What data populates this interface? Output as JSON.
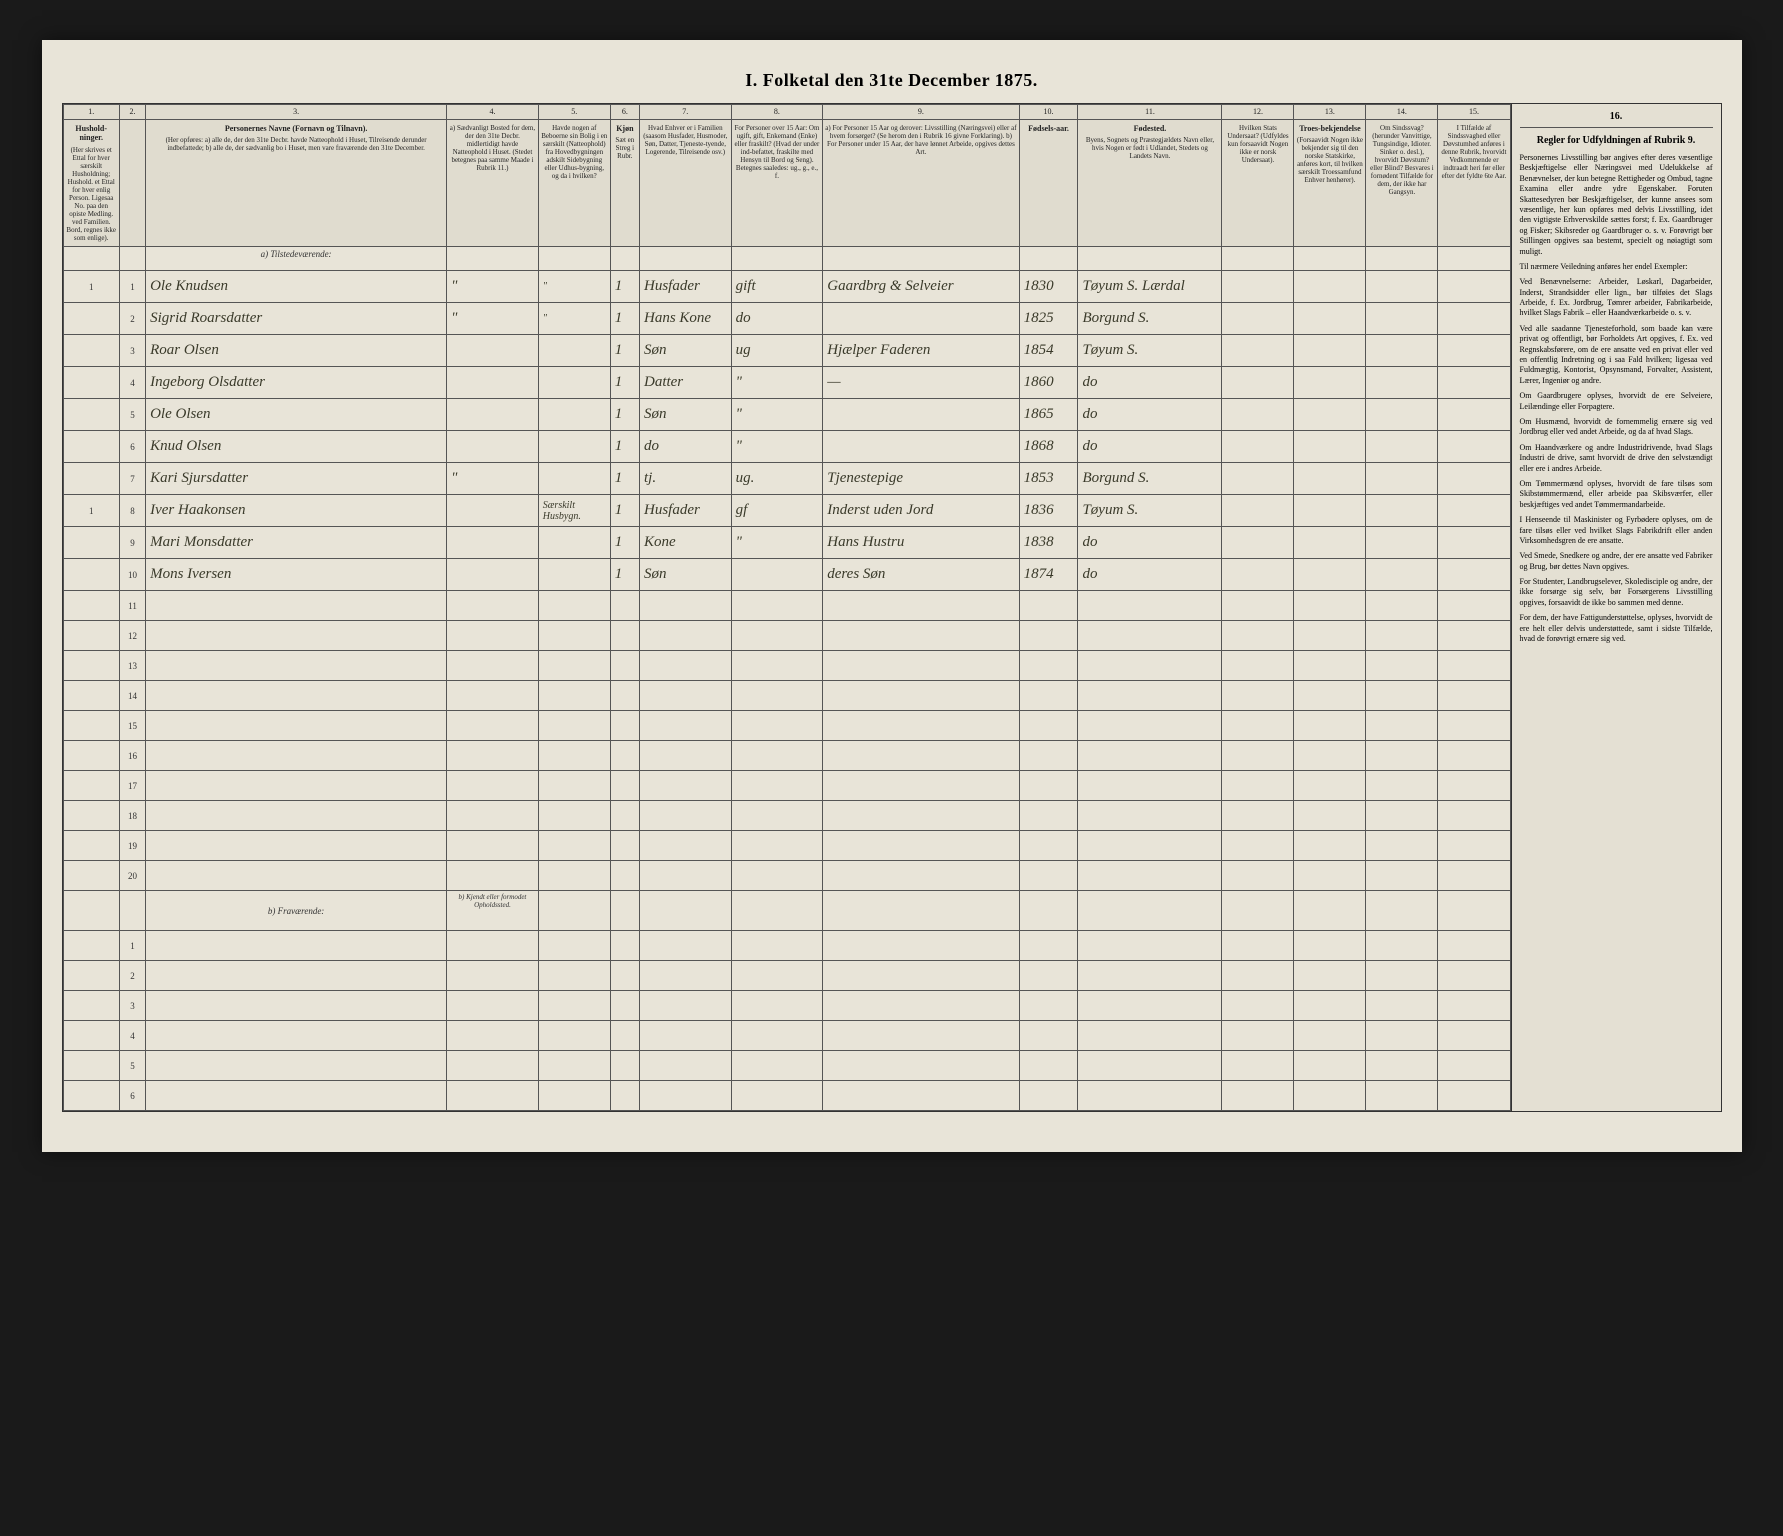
{
  "title": "I. Folketal den 31te December 1875.",
  "columns": [
    {
      "num": "1.",
      "title": "Hushold-ninger.",
      "desc": "(Her skrives et Ettal for hver særskilt Husholdning; Hushold. et Ettal for hver enlig Person. Ligesaa No. paa den opiste Medling. ved Familien. Bord, regnes ikke som enlige)."
    },
    {
      "num": "2.",
      "title": "",
      "desc": ""
    },
    {
      "num": "3.",
      "title": "Personernes Navne (Fornavn og Tilnavn).",
      "desc": "(Her opføres: a) alle de, der den 31te Decbr. havde Natteophold i Huset, Tilreisende derunder indbefattede; b) alle de, der sædvanlig bo i Huset, men vare fraværende den 31te December."
    },
    {
      "num": "4.",
      "title": "",
      "desc": "a) Sædvanligt Bosted for dem, der den 31te Decbr. midlertidigt havde Natteophold i Huset. (Stedet betegnes paa samme Maade i Rubrik 11.)"
    },
    {
      "num": "5.",
      "title": "",
      "desc": "Havde nogen af Beboerne sin Bolig i en særskilt (Natteophold) fra Hovedbygningen adskilt Sidebygning eller Udhus-bygning, og da i hvilken?"
    },
    {
      "num": "6.",
      "title": "Kjøn",
      "desc": "Sæt en Streg i Rubr."
    },
    {
      "num": "7.",
      "title": "",
      "desc": "Hvad Enhver er i Familien (saasom Husfader, Husmoder, Søn, Datter, Tjeneste-tyende, Logerende, Tilreisende osv.)"
    },
    {
      "num": "8.",
      "title": "",
      "desc": "For Personer over 15 Aar: Om ugift, gift, Enkemand (Enke) eller fraskilt? (Hvad der under ind-befattet, fraskilte med Hensyn til Bord og Seng). Betegnes saaledes: ug., g., e., f."
    },
    {
      "num": "9.",
      "title": "",
      "desc": "a) For Personer 15 Aar og derover: Livsstilling (Næringsvei) eller af hvem forsørget? (Se herom den i Rubrik 16 givne Forklaring). b) For Personer under 15 Aar, der have lønnet Arbeide, opgives dettes Art."
    },
    {
      "num": "10.",
      "title": "Fødsels-aar.",
      "desc": ""
    },
    {
      "num": "11.",
      "title": "Fødested.",
      "desc": "Byens, Sognets og Præstegjældets Navn eller, hvis Nogen er født i Udlandet, Stedets og Landets Navn."
    },
    {
      "num": "12.",
      "title": "",
      "desc": "Hvilken Stats Undersaat? (Udfyldes kun forsaavidt Nogen ikke er norsk Undersaat)."
    },
    {
      "num": "13.",
      "title": "Troes-bekjendelse",
      "desc": "(Forsaavidt Nogen ikke bekjender sig til den norske Statskirke, anføres kort, til hvilken særskilt Troessamfund Enhver henhører)."
    },
    {
      "num": "14.",
      "title": "",
      "desc": "Om Sindssvag? (herunder Vanvittige, Tungsindige, Idioter. Sinker o. desl.), hvorvidt Døvstum? eller Blind? Besvares i fornødent Tilfælde for dem, der ikke har Gangsyn."
    },
    {
      "num": "15.",
      "title": "",
      "desc": "I Tilfælde af Sindssvaghed eller Døvstumhed anføres i denne Rubrik, hvorvidt Vedkommende er indtraadt heri før eller efter det fyldte 6te Aar."
    }
  ],
  "sideColumn": {
    "num": "16.",
    "title": "Regler for Udfyldningen af Rubrik 9.",
    "paragraphs": [
      "Personernes Livsstilling bør angives efter deres væsentlige Beskjæftigelse eller Næringsvei med Udelukkelse af Benævnelser, der kun betegne Rettigheder og Ombud, tagne Examina eller andre ydre Egenskaber. Foruten Skattesedyren bør Beskjæftigelser, der kunne ansees som væsentlige, her kun opføres med delvis Livsstilling, idet den vigtigste Erhvervskilde sættes forst; f. Ex. Gaardbruger og Fisker; Skibsreder og Gaardbruger o. s. v. Forøvrigt bør Stillingen opgives saa bestemt, specielt og nøiagtigt som muligt.",
      "Til nærmere Veiledning anføres her endel Exempler:",
      "Ved Benævnelserne: Arbeider, Løskarl, Dagarbeider, Inderst, Strandsidder eller lign., bør tilføies det Slags Arbeide, f. Ex. Jordbrug, Tømrer arbeider, Fabrikarbeide, hvilket Slags Fabrik – eller Haandværkarbeide o. s. v.",
      "Ved alle saadanne Tjenesteforhold, som baade kan være privat og offentligt, bør Forholdets Art opgives, f. Ex. ved Regnskabsførere, om de ere ansatte ved en privat eller ved en offentlig Indretning og i saa Fald hvilken; ligesaa ved Fuldmægtig, Kontorist, Opsynsmand, Forvalter, Assistent, Lærer, Ingeniør og andre.",
      "Om Gaardbrugere oplyses, hvorvidt de ere Selveiere, Leilændinge eller Forpagtere.",
      "Om Husmænd, hvorvidt de fornemmelig ernære sig ved Jordbrug eller ved andet Arbeide, og da af hvad Slags.",
      "Om Haandværkere og andre Industridrivende, hvad Slags Industri de drive, samt hvorvidt de drive den selvstændigt eller ere i andres Arbeide.",
      "Om Tømmermænd oplyses, hvorvidt de fare tilsøs som Skibstømmermænd, eller arbeide paa Skibsværfer, eller beskjæftiges ved andet Tømmermandarbeide.",
      "I Henseende til Maskinister og Fyrbødere oplyses, om de fare tilsøs eller ved hvilket Slags Fabrikdrift eller anden Virksomhedsgren de ere ansatte.",
      "Ved Smede, Snedkere og andre, der ere ansatte ved Fabriker og Brug, bør dettes Navn opgives.",
      "For Studenter, Landbrugselever, Skoledisciple og andre, der ikke forsørge sig selv, bør Forsørgerens Livsstilling opgives, forsaavidt de ikke bo sammen med denne.",
      "For dem, der have Fattigunderstøttelse, oplyses, hvorvidt de ere helt eller delvis understøttede, samt i sidste Tilfælde, hvad de forøvrigt ernære sig ved."
    ]
  },
  "sectionA": "a) Tilstedeværende:",
  "sectionB": "b) Fraværende:",
  "sectionBNote": "b) Kjendt eller formodet Opholdssted.",
  "rows": [
    {
      "n": "1",
      "hh": "1",
      "name": "Ole Knudsen",
      "c4": "\"",
      "c5": "\"",
      "c6": "1",
      "rel": "Husfader",
      "stat": "gift",
      "occ": "Gaardbrg & Selveier",
      "yr": "1830",
      "place": "Tøyum S. Lærdal"
    },
    {
      "n": "2",
      "hh": "",
      "name": "Sigrid Roarsdatter",
      "c4": "\"",
      "c5": "\"",
      "c6": "1",
      "rel": "Hans Kone",
      "stat": "do",
      "occ": "",
      "yr": "1825",
      "place": "Borgund S."
    },
    {
      "n": "3",
      "hh": "",
      "name": "Roar Olsen",
      "c4": "",
      "c5": "",
      "c6": "1",
      "rel": "Søn",
      "stat": "ug",
      "occ": "Hjælper Faderen",
      "yr": "1854",
      "place": "Tøyum S."
    },
    {
      "n": "4",
      "hh": "",
      "name": "Ingeborg Olsdatter",
      "c4": "",
      "c5": "",
      "c6": "1",
      "rel": "Datter",
      "stat": "\"",
      "occ": "—",
      "yr": "1860",
      "place": "do"
    },
    {
      "n": "5",
      "hh": "",
      "name": "Ole Olsen",
      "c4": "",
      "c5": "",
      "c6": "1",
      "rel": "Søn",
      "stat": "\"",
      "occ": "",
      "yr": "1865",
      "place": "do"
    },
    {
      "n": "6",
      "hh": "",
      "name": "Knud Olsen",
      "c4": "",
      "c5": "",
      "c6": "1",
      "rel": "do",
      "stat": "\"",
      "occ": "",
      "yr": "1868",
      "place": "do"
    },
    {
      "n": "7",
      "hh": "",
      "name": "Kari Sjursdatter",
      "c4": "\"",
      "c5": "",
      "c6": "1",
      "rel": "tj.",
      "stat": "ug.",
      "occ": "Tjenestepige",
      "yr": "1853",
      "place": "Borgund S."
    },
    {
      "n": "8",
      "hh": "1",
      "name": "Iver Haakonsen",
      "c4": "",
      "c5": "Særskilt Husbygn.",
      "c6": "1",
      "rel": "Husfader",
      "stat": "gf",
      "occ": "Inderst uden Jord",
      "yr": "1836",
      "place": "Tøyum S."
    },
    {
      "n": "9",
      "hh": "",
      "name": "Mari Monsdatter",
      "c4": "",
      "c5": "",
      "c6": "1",
      "rel": "Kone",
      "stat": "\"",
      "occ": "Hans Hustru",
      "yr": "1838",
      "place": "do"
    },
    {
      "n": "10",
      "hh": "",
      "name": "Mons Iversen",
      "c4": "",
      "c5": "",
      "c6": "1",
      "rel": "Søn",
      "stat": "",
      "occ": "deres Søn",
      "yr": "1874",
      "place": "do"
    }
  ],
  "emptyRowsA": [
    11,
    12,
    13,
    14,
    15,
    16,
    17,
    18,
    19,
    20
  ],
  "emptyRowsB": [
    1,
    2,
    3,
    4,
    5,
    6
  ]
}
